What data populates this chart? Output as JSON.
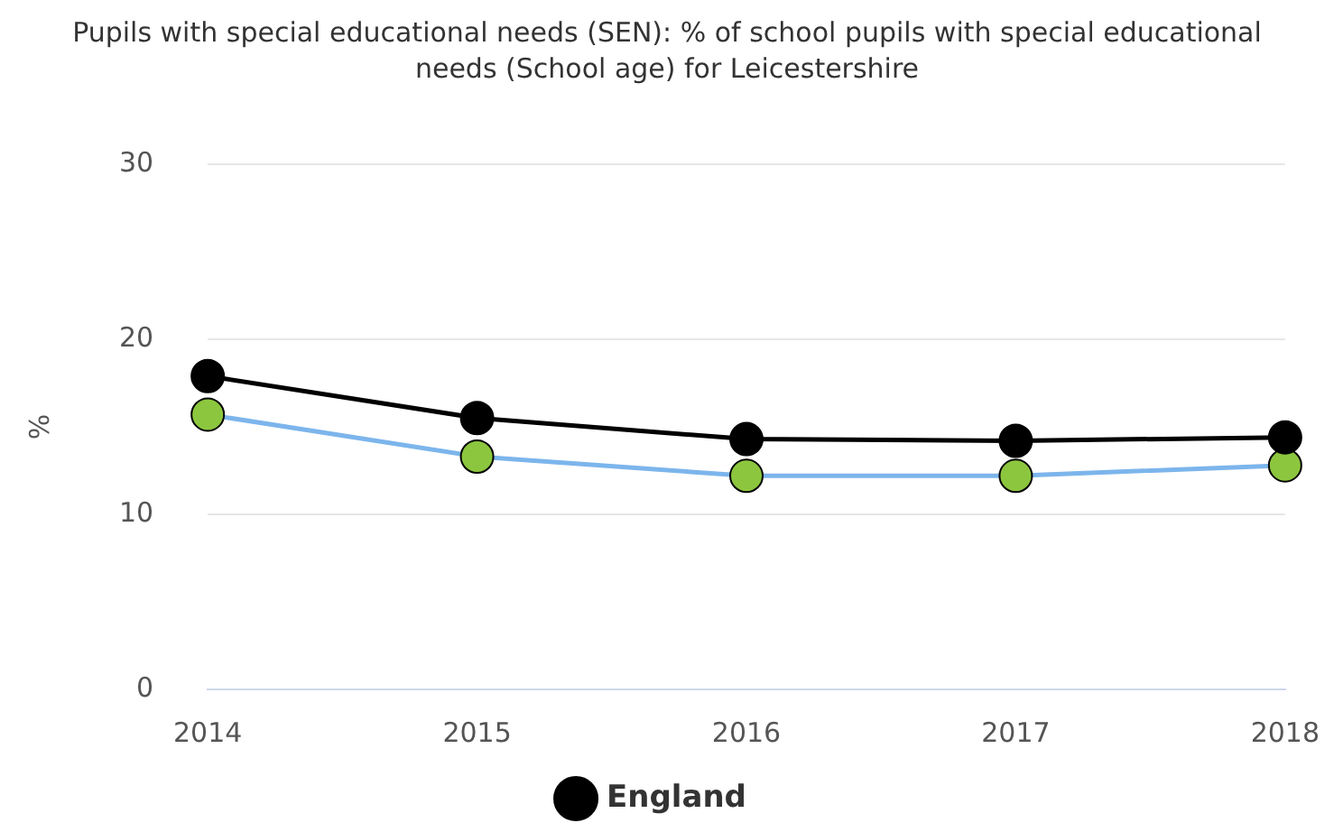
{
  "chart_data": {
    "type": "line",
    "title": "Pupils with special educational needs (SEN): % of school pupils with special educational needs (School age) for Leicestershire",
    "ylabel": "%",
    "categories": [
      "2014",
      "2015",
      "2016",
      "2017",
      "2018"
    ],
    "series": [
      {
        "name": "England",
        "color": "#000000",
        "values": [
          17.9,
          15.5,
          14.3,
          14.2,
          14.4
        ]
      },
      {
        "color": "#7cb5ec",
        "colors": [
          "#8cc63e",
          "#8cc63e",
          "#8cc63e",
          "#8cc63e",
          "#8cc63e"
        ],
        "values": [
          15.7,
          13.3,
          12.2,
          12.2,
          12.8
        ]
      }
    ],
    "ylim": [
      0,
      30
    ],
    "yticks": [
      0,
      10,
      20,
      30
    ],
    "grid": "y",
    "legend": "bottom",
    "marker": "circle"
  }
}
